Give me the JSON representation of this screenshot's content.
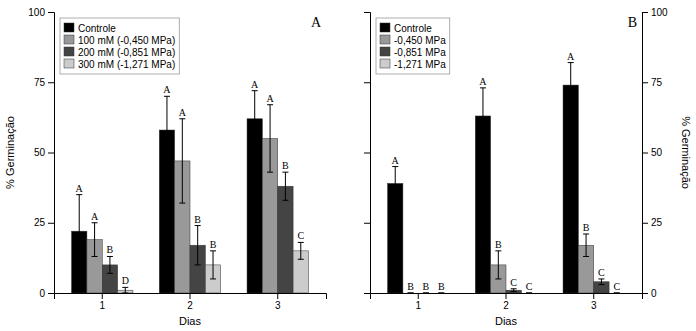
{
  "chart_data": [
    {
      "type": "bar",
      "title": "A",
      "xlabel": "Dias",
      "ylabel": "% Germinação",
      "categories": [
        "1",
        "2",
        "3"
      ],
      "series": [
        {
          "name": "Controle",
          "color": "#000000",
          "values": [
            22,
            58,
            62
          ],
          "errors": [
            13,
            12,
            10
          ],
          "annotations": [
            "A",
            "A",
            "A"
          ]
        },
        {
          "name": "100 mM (-0,450 MPa)",
          "color": "#999999",
          "values": [
            19,
            47,
            55
          ],
          "errors": [
            6,
            15,
            12
          ],
          "annotations": [
            "A",
            "A",
            "A"
          ]
        },
        {
          "name": "200 mM (-0,851 MPa)",
          "color": "#444444",
          "values": [
            10,
            17,
            38
          ],
          "errors": [
            3,
            7,
            5
          ],
          "annotations": [
            "B",
            "B",
            "B"
          ]
        },
        {
          "name": "300 mM (-1,271 MPa)",
          "color": "#cccccc",
          "values": [
            1,
            10,
            15
          ],
          "errors": [
            1,
            5,
            3
          ],
          "annotations": [
            "D",
            "B",
            "C"
          ]
        }
      ],
      "ylim": [
        0,
        100
      ],
      "yticks": [
        0,
        25,
        50,
        75,
        100
      ],
      "grid": false,
      "legend": "upper left"
    },
    {
      "type": "bar",
      "title": "B",
      "xlabel": "Dias",
      "ylabel": "% Germinação",
      "categories": [
        "1",
        "2",
        "3"
      ],
      "series": [
        {
          "name": "Controle",
          "color": "#000000",
          "values": [
            39,
            63,
            74
          ],
          "errors": [
            6,
            10,
            8
          ],
          "annotations": [
            "A",
            "A",
            "A"
          ]
        },
        {
          "name": "-0,450 MPa",
          "color": "#999999",
          "values": [
            0,
            10,
            17
          ],
          "errors": [
            0,
            5,
            4
          ],
          "annotations": [
            "B",
            "B",
            "B"
          ]
        },
        {
          "name": "-0,851 MPa",
          "color": "#444444",
          "values": [
            0,
            1,
            4
          ],
          "errors": [
            0,
            0.5,
            1
          ],
          "annotations": [
            "B",
            "C",
            "C"
          ]
        },
        {
          "name": "-1,271 MPa",
          "color": "#cccccc",
          "values": [
            0,
            0,
            0
          ],
          "errors": [
            0,
            0,
            0
          ],
          "annotations": [
            "B",
            "C",
            "C"
          ]
        }
      ],
      "ylim": [
        0,
        100
      ],
      "yticks": [
        0,
        25,
        50,
        75,
        100
      ],
      "grid": false,
      "legend": "upper left"
    }
  ]
}
